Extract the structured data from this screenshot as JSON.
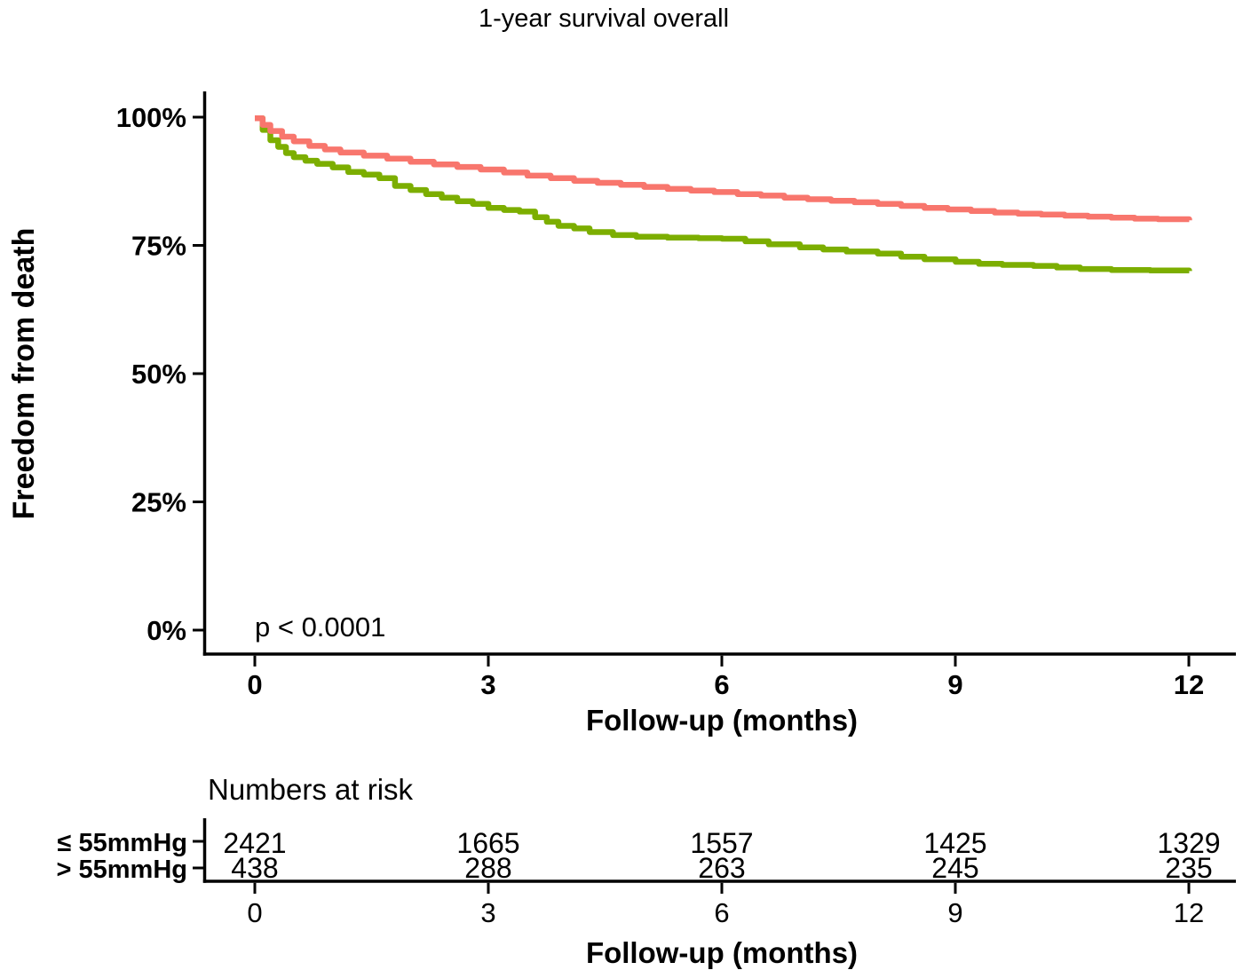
{
  "title": "1-year survival overall",
  "y_axis": {
    "label": "Freedom from death",
    "tick_labels": [
      "100%",
      "75%",
      "50%",
      "25%",
      "0%"
    ]
  },
  "x_axis": {
    "label": "Follow-up (months)",
    "tick_labels": [
      "0",
      "3",
      "6",
      "9",
      "12"
    ]
  },
  "annotation": {
    "p_value": "p < 0.0001"
  },
  "chart_data": {
    "type": "line",
    "subtype": "kaplan-meier-step",
    "title": "1-year survival overall",
    "xlabel": "Follow-up (months)",
    "ylabel": "Freedom from death",
    "xlim": [
      0,
      12
    ],
    "ylim": [
      0,
      100
    ],
    "x_ticks": [
      0,
      3,
      6,
      9,
      12
    ],
    "y_ticks": [
      0,
      25,
      50,
      75,
      100
    ],
    "grid": false,
    "legend_position": "none",
    "series": [
      {
        "name": "≤ 55mmHg",
        "color": "#F8766D",
        "x": [
          0,
          0.1,
          0.2,
          0.35,
          0.5,
          0.7,
          0.9,
          1.1,
          1.4,
          1.7,
          2.0,
          2.3,
          2.6,
          2.9,
          3.2,
          3.5,
          3.8,
          4.1,
          4.4,
          4.7,
          5.0,
          5.3,
          5.6,
          5.9,
          6.2,
          6.5,
          6.8,
          7.1,
          7.4,
          7.7,
          8.0,
          8.3,
          8.6,
          8.9,
          9.2,
          9.5,
          9.8,
          10.1,
          10.4,
          10.7,
          11.0,
          11.3,
          11.6,
          12.0
        ],
        "y": [
          99.8,
          98.5,
          97.3,
          96.2,
          95.3,
          94.4,
          93.7,
          93.1,
          92.5,
          91.9,
          91.3,
          90.8,
          90.3,
          89.8,
          89.2,
          88.6,
          88.1,
          87.6,
          87.2,
          86.8,
          86.4,
          86.0,
          85.7,
          85.4,
          85.0,
          84.7,
          84.3,
          84.0,
          83.7,
          83.4,
          83.1,
          82.7,
          82.3,
          82.0,
          81.7,
          81.4,
          81.2,
          81.0,
          80.8,
          80.6,
          80.4,
          80.2,
          80.1,
          79.9
        ]
      },
      {
        "name": "> 55mmHg",
        "color": "#7CAE00",
        "x": [
          0,
          0.1,
          0.2,
          0.3,
          0.4,
          0.5,
          0.65,
          0.8,
          1.0,
          1.2,
          1.4,
          1.6,
          1.8,
          2.0,
          2.2,
          2.4,
          2.6,
          2.8,
          3.0,
          3.2,
          3.4,
          3.6,
          3.75,
          3.9,
          4.1,
          4.3,
          4.6,
          4.9,
          5.3,
          5.7,
          6.0,
          6.3,
          6.6,
          7.0,
          7.3,
          7.6,
          8.0,
          8.3,
          8.6,
          9.0,
          9.3,
          9.6,
          10.0,
          10.3,
          10.6,
          11.0,
          11.5,
          12.0
        ],
        "y": [
          99.8,
          97.5,
          95.5,
          94.2,
          93.0,
          92.2,
          91.5,
          90.9,
          90.2,
          89.3,
          88.8,
          88.1,
          86.6,
          85.8,
          85.0,
          84.3,
          83.6,
          83.1,
          82.3,
          81.9,
          81.6,
          80.5,
          79.6,
          78.8,
          78.3,
          77.6,
          77.0,
          76.7,
          76.5,
          76.4,
          76.3,
          75.8,
          75.2,
          74.6,
          74.2,
          73.8,
          73.4,
          72.8,
          72.3,
          71.8,
          71.4,
          71.2,
          71.0,
          70.7,
          70.4,
          70.2,
          70.1,
          70.0
        ]
      }
    ],
    "annotations": [
      {
        "text": "p < 0.0001",
        "x": 0,
        "y": 2
      }
    ],
    "numbers_at_risk": {
      "times": [
        0,
        3,
        6,
        9,
        12
      ],
      "groups": [
        {
          "name": "≤ 55mmHg",
          "counts": [
            2421,
            1665,
            1557,
            1425,
            1329
          ]
        },
        {
          "name": "> 55mmHg",
          "counts": [
            438,
            288,
            263,
            245,
            235
          ]
        }
      ]
    }
  },
  "risk_table": {
    "heading": "Numbers at risk",
    "x_axis_label": "Follow-up (months)",
    "x_tick_labels": [
      "0",
      "3",
      "6",
      "9",
      "12"
    ],
    "rows": [
      {
        "label": "≤ 55mmHg",
        "color": "#F8766D",
        "values": [
          "2421",
          "1665",
          "1557",
          "1425",
          "1329"
        ]
      },
      {
        "label": "> 55mmHg",
        "color": "#7CAE00",
        "values": [
          "438",
          "288",
          "263",
          "245",
          "235"
        ]
      }
    ]
  },
  "colors": {
    "group_le_55": "#F8766D",
    "group_gt_55": "#7CAE00",
    "axis": "#000000",
    "text": "#000000"
  }
}
